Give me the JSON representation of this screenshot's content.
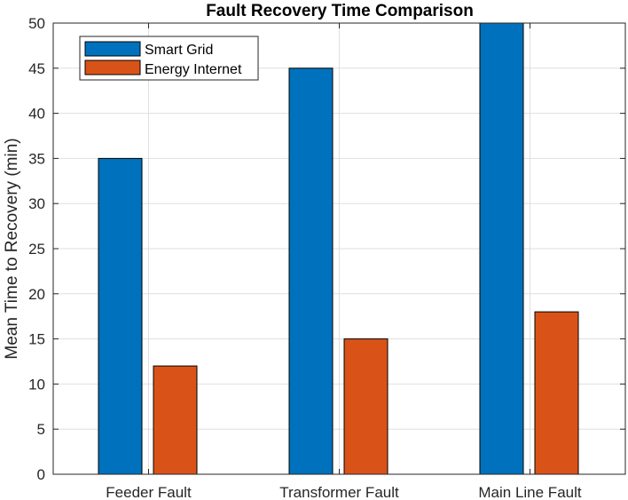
{
  "chart_data": {
    "type": "bar",
    "title": "Fault Recovery Time Comparison",
    "xlabel": "",
    "ylabel": "Mean Time to Recovery (min)",
    "categories": [
      "Feeder Fault",
      "Transformer Fault",
      "Main Line Fault"
    ],
    "series": [
      {
        "name": "Smart Grid",
        "values": [
          35,
          45,
          50
        ],
        "color": "#0072BD"
      },
      {
        "name": "Energy Internet",
        "values": [
          12,
          15,
          18
        ],
        "color": "#D95319"
      }
    ],
    "ylim": [
      0,
      50
    ],
    "yticks": [
      0,
      5,
      10,
      15,
      20,
      25,
      30,
      35,
      40,
      45,
      50
    ],
    "grid": true,
    "legend_position": "top-left"
  }
}
